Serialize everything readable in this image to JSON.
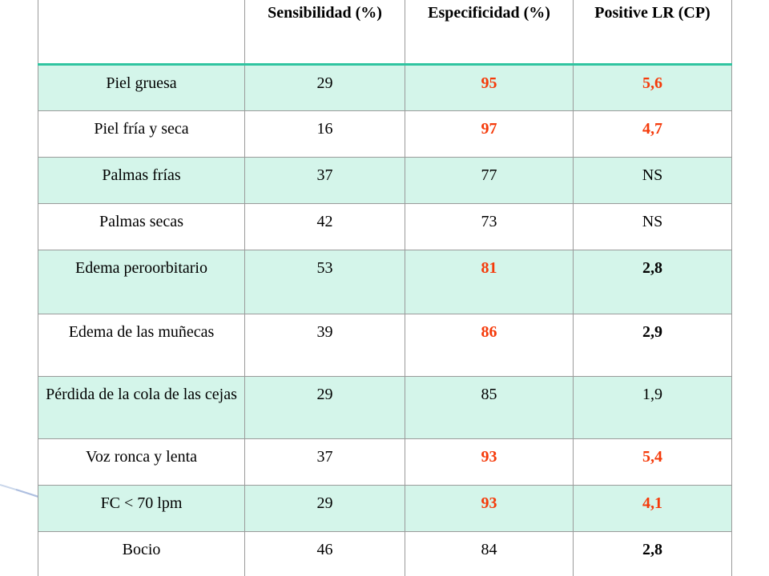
{
  "table": {
    "headers": [
      "",
      "Sensibilidad (%)",
      "Especificidad (%)",
      "Positive LR (CP)"
    ],
    "rows": [
      {
        "sign": "Piel gruesa",
        "sens": "29",
        "spec": "95",
        "spec_emph": true,
        "lr": "5,6",
        "lr_emph": true
      },
      {
        "sign": "Piel fría y seca",
        "sens": "16",
        "spec": "97",
        "spec_emph": true,
        "lr": "4,7",
        "lr_emph": true
      },
      {
        "sign": "Palmas frías",
        "sens": "37",
        "spec": "77",
        "spec_emph": false,
        "lr": "NS",
        "lr_emph": false
      },
      {
        "sign": "Palmas secas",
        "sens": "42",
        "spec": "73",
        "spec_emph": false,
        "lr": "NS",
        "lr_emph": false
      },
      {
        "sign": "Edema peroorbitario",
        "sens": "53",
        "spec": "81",
        "spec_emph": true,
        "lr": "2,8",
        "lr_emph": true
      },
      {
        "sign": "Edema de las muñecas",
        "sens": "39",
        "spec": "86",
        "spec_emph": true,
        "lr": "2,9",
        "lr_emph": true
      },
      {
        "sign": "Pérdida de la cola de las cejas",
        "sens": "29",
        "spec": "85",
        "spec_emph": false,
        "lr": "1,9",
        "lr_emph": false
      },
      {
        "sign": "Voz ronca y lenta",
        "sens": "37",
        "spec": "93",
        "spec_emph": true,
        "lr": "5,4",
        "lr_emph": true
      },
      {
        "sign": "FC < 70 lpm",
        "sens": "29",
        "spec": "93",
        "spec_emph": true,
        "lr": "4,1",
        "lr_emph": true
      },
      {
        "sign": "Bocio",
        "sens": "46",
        "spec": "84",
        "spec_emph": false,
        "lr": "2,8",
        "lr_emph": true
      }
    ]
  },
  "colors": {
    "emphasis": "#f53a0a",
    "row_band": "#d4f5ea",
    "header_rule": "#2fc4a0"
  }
}
